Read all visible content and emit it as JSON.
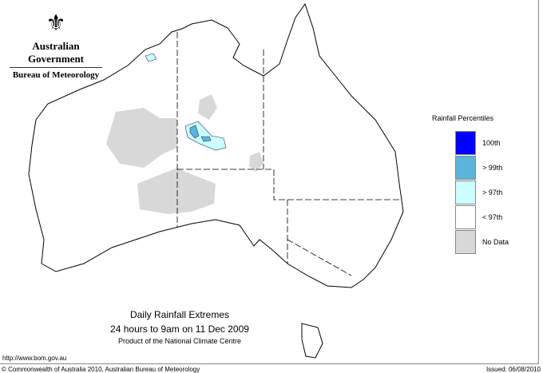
{
  "header": {
    "logo_text": "Australian Government",
    "org": "Bureau of Meteorology"
  },
  "legend": {
    "title": "Rainfall Percentiles",
    "items": [
      {
        "label": "100th",
        "color": "#0000ff"
      },
      {
        "label": "> 99th",
        "color": "#5ab4dc"
      },
      {
        "label": "> 97th",
        "color": "#ccffff"
      },
      {
        "label": "< 97th",
        "color": "#ffffff"
      },
      {
        "label": "No Data",
        "color": "#d8d8d8"
      }
    ]
  },
  "map": {
    "title": "Daily Rainfall Extremes",
    "subtitle": "24 hours to 9am on 11 Dec 2009",
    "product": "Product of the National Climate Centre"
  },
  "footer": {
    "url": "http://www.bom.gov.au",
    "copyright": "© Commonwealth of Australia 2010, Australian Bureau of Meteorology",
    "issued": "Issued: 06/08/2010"
  }
}
